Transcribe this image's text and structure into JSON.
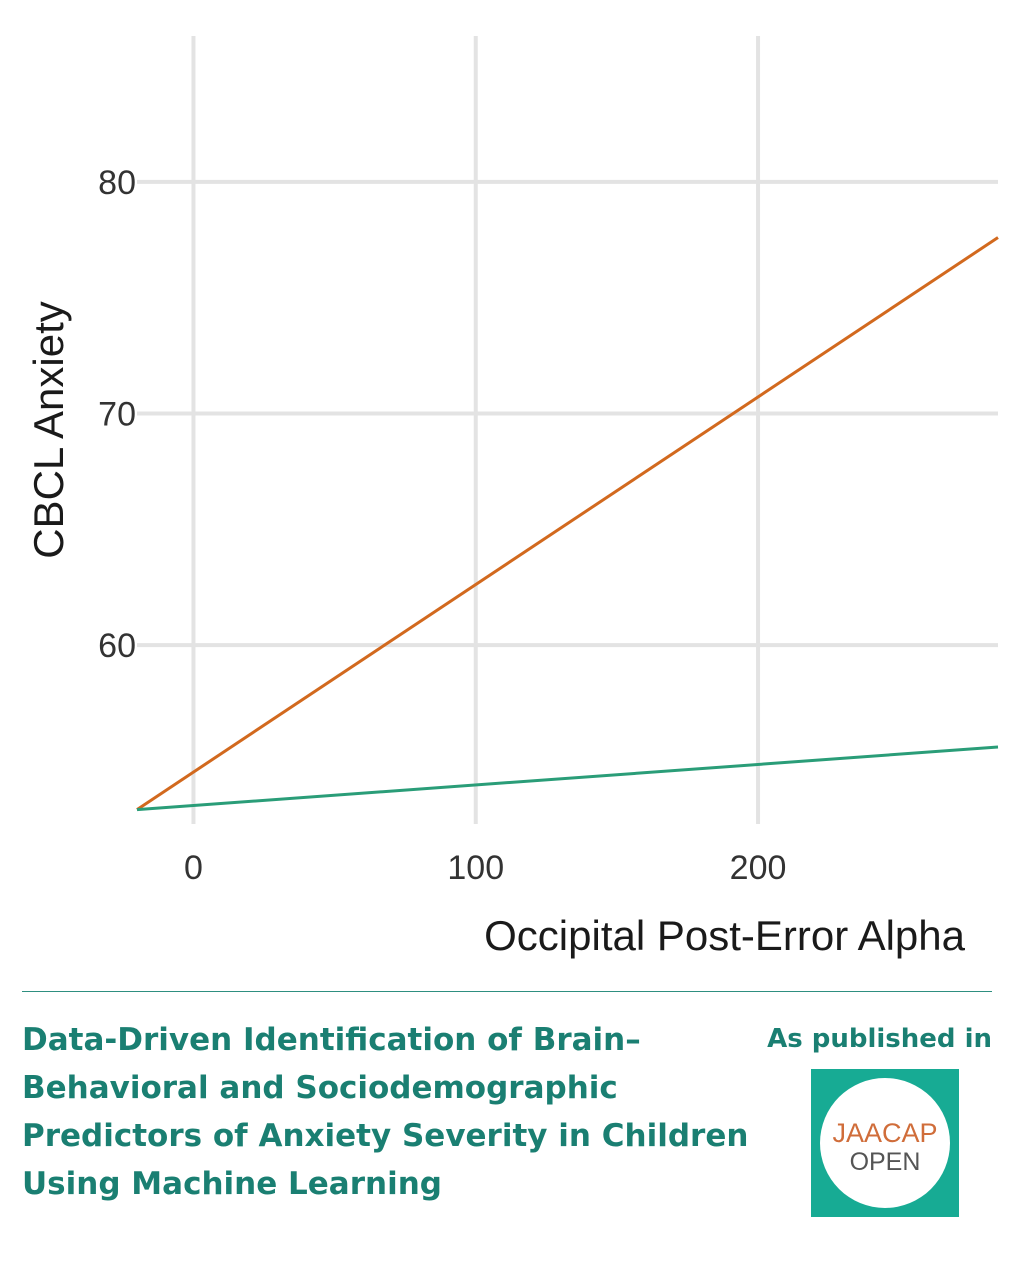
{
  "chart_data": {
    "type": "line",
    "title": "",
    "xlabel": "Occipital Post-Error Alpha",
    "ylabel": "CBCL Anxiety",
    "xlim": [
      -20,
      285
    ],
    "ylim": [
      51.5,
      86.3
    ],
    "xticks": [
      0,
      100,
      200
    ],
    "yticks": [
      60,
      70,
      80
    ],
    "grid": true,
    "legend": "none",
    "series": [
      {
        "color": "#d2691e",
        "x": [
          -20,
          285
        ],
        "values": [
          52.9,
          77.6
        ]
      },
      {
        "color": "#2a9d78",
        "x": [
          -20,
          285
        ],
        "values": [
          52.9,
          55.6
        ]
      }
    ]
  },
  "footer": {
    "paper_title": "Data-Driven Identification of Brain–Behavioral and Sociodemographic Predictors of Anxiety Severity in Children Using Machine Learning",
    "published_label": "As published in",
    "logo_top": "JAACAP",
    "logo_bottom": "OPEN",
    "accent_color": "#1a7f72",
    "logo_bg_color": "#17ab94"
  }
}
